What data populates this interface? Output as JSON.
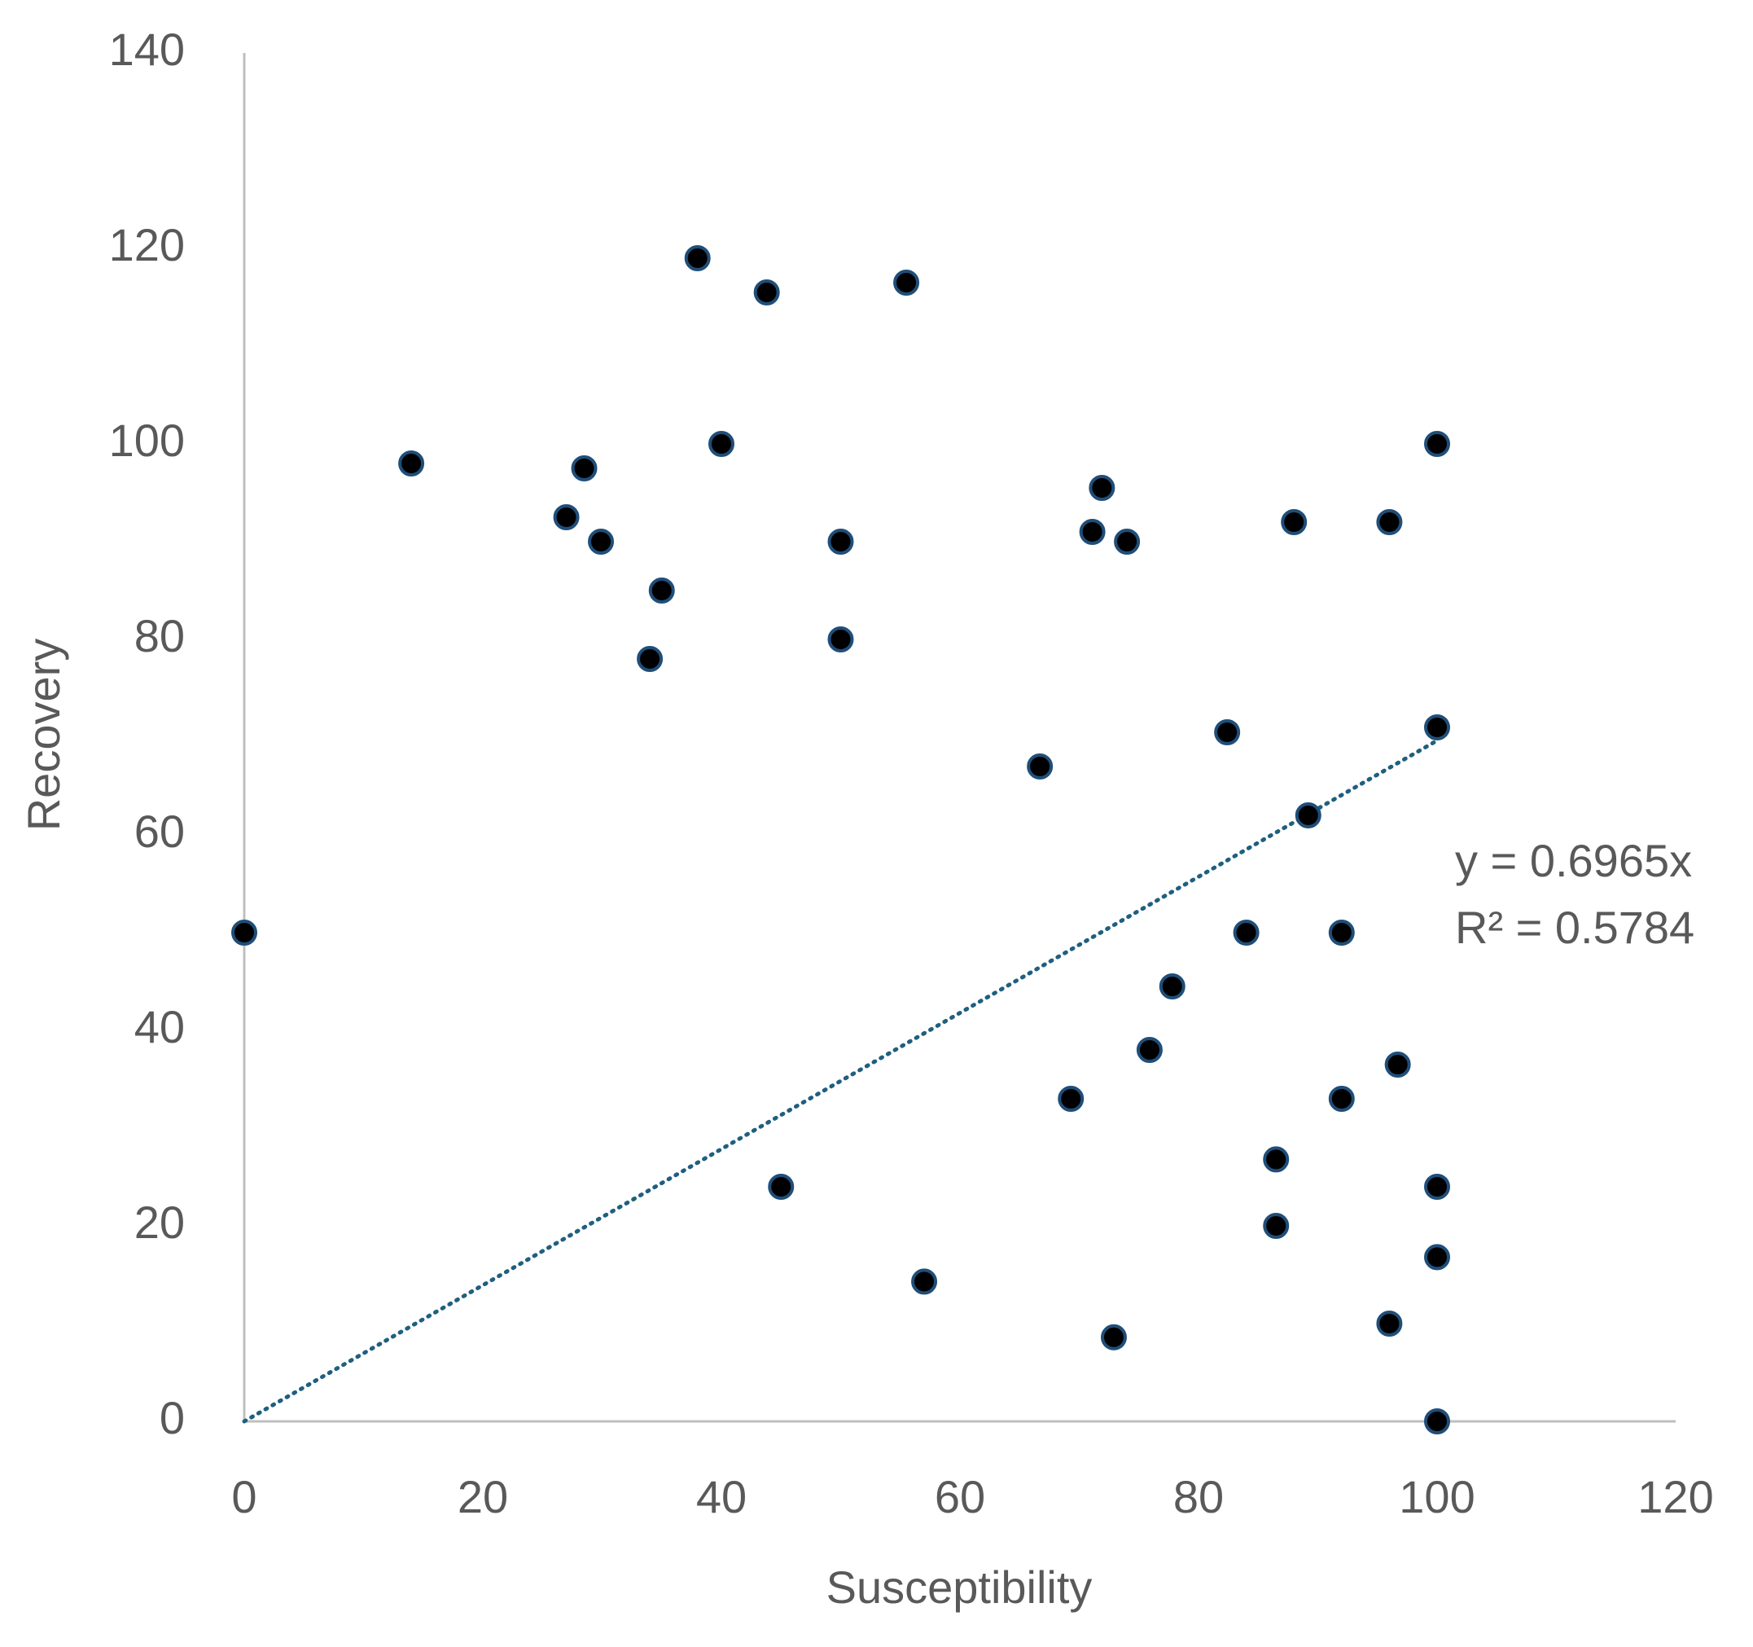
{
  "chart_data": {
    "type": "scatter",
    "x_label": "Susceptibility",
    "y_label": "Recovery",
    "series": [
      {
        "name": "Recovery",
        "color": "#000000",
        "x": [
          0,
          14,
          27,
          28.5,
          29.9,
          35,
          34,
          38,
          40,
          43.8,
          45,
          50,
          50,
          55.5,
          57,
          66.7,
          69.3,
          71.1,
          71.9,
          74,
          72.9,
          75.9,
          77.8,
          82.4,
          84,
          86.5,
          86.5,
          88,
          89.2,
          92,
          92,
          96,
          96.7,
          96,
          100,
          100,
          100,
          100,
          100
        ],
        "values": [
          50,
          98,
          92.5,
          97.5,
          90,
          85,
          78,
          119,
          100,
          115.5,
          24,
          90,
          80,
          116.5,
          14.3,
          67,
          33,
          91,
          95.5,
          90,
          8.6,
          38,
          44.5,
          70.5,
          50,
          26.8,
          20,
          92,
          62,
          50,
          33,
          92,
          36.5,
          10,
          100,
          71,
          24,
          16.8,
          0
        ]
      }
    ],
    "trendline": {
      "slope": 0.6965,
      "color": "#1f5f7f",
      "equation": "y = 0.6965x",
      "r_squared_label": "R² = 0.5784"
    },
    "xlim": [
      0,
      120
    ],
    "xticks": [
      0,
      20,
      40,
      60,
      80,
      100,
      120
    ],
    "ylim": [
      0,
      140
    ],
    "yticks": [
      0,
      20,
      40,
      60,
      80,
      100,
      120,
      140
    ],
    "grid": false
  }
}
